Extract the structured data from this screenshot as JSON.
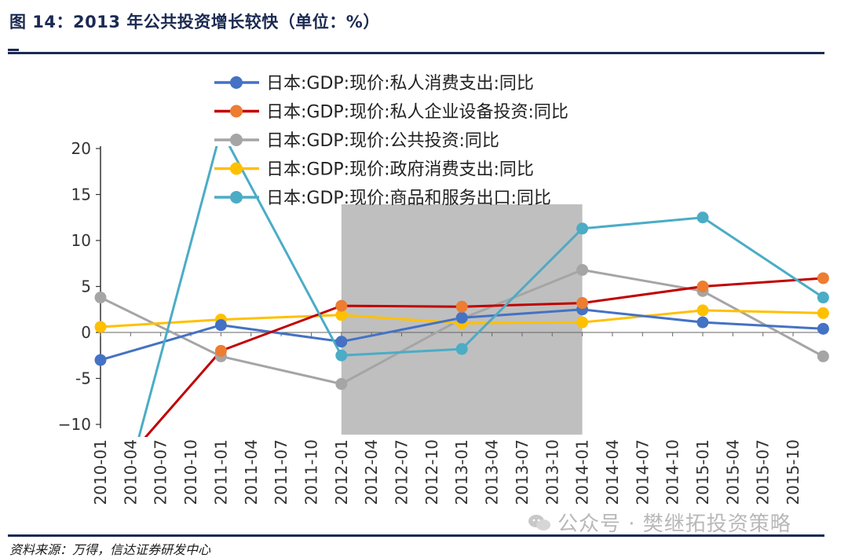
{
  "title": "图 14：2013 年公共投资增长较快（单位：%）",
  "source": "资料来源：万得，信达证券研发中心",
  "watermark": "公众号 · 樊继拓投资策略",
  "chart_data": {
    "type": "line",
    "x": [
      "2010-01",
      "2010-04",
      "2010-07",
      "2010-10",
      "2011-01",
      "2011-04",
      "2011-07",
      "2011-10",
      "2012-01",
      "2012-04",
      "2012-07",
      "2012-10",
      "2013-01",
      "2013-04",
      "2013-07",
      "2013-10",
      "2014-01",
      "2014-04",
      "2014-07",
      "2014-10",
      "2015-01",
      "2015-04",
      "2015-07",
      "2015-10"
    ],
    "ylim": [
      -10,
      20
    ],
    "yticks": [
      20,
      15,
      10,
      5,
      0,
      -5,
      -10
    ],
    "ytick_labels": [
      "20",
      "15",
      "10",
      "5",
      "0",
      "-5",
      "−10"
    ],
    "grid": false,
    "legend_position": "top",
    "shaded_region": {
      "from": "2012-01",
      "to": "2014-01",
      "color": "#bfbfbf"
    },
    "series": [
      {
        "name": "日本:GDP:现价:私人消费支出:同比",
        "color": "#4472c4",
        "points": [
          [
            "2010-01",
            -3.0
          ],
          [
            "2011-01",
            0.8
          ],
          [
            "2012-01",
            -1.0
          ],
          [
            "2013-01",
            1.6
          ],
          [
            "2014-01",
            2.5
          ],
          [
            "2015-01",
            1.1
          ],
          [
            "2016-01",
            0.4
          ]
        ]
      },
      {
        "name": "日本:GDP:现价:私人企业设备投资:同比",
        "color": "#c00000",
        "marker": "#ed7d31",
        "points": [
          [
            "2010-01",
            -17.0
          ],
          [
            "2011-01",
            -2.0
          ],
          [
            "2012-01",
            2.9
          ],
          [
            "2013-01",
            2.8
          ],
          [
            "2014-01",
            3.2
          ],
          [
            "2015-01",
            5.0
          ],
          [
            "2016-01",
            5.9
          ]
        ]
      },
      {
        "name": "日本:GDP:现价:公共投资:同比",
        "color": "#a5a5a5",
        "points": [
          [
            "2010-01",
            3.8
          ],
          [
            "2011-01",
            -2.6
          ],
          [
            "2012-01",
            -5.6
          ],
          [
            "2013-01",
            1.5
          ],
          [
            "2014-01",
            6.8
          ],
          [
            "2015-01",
            4.5
          ],
          [
            "2016-01",
            -2.6
          ]
        ]
      },
      {
        "name": "日本:GDP:现价:政府消费支出:同比",
        "color": "#ffc000",
        "points": [
          [
            "2010-01",
            0.6
          ],
          [
            "2011-01",
            1.4
          ],
          [
            "2012-01",
            1.9
          ],
          [
            "2013-01",
            1.0
          ],
          [
            "2014-01",
            1.1
          ],
          [
            "2015-01",
            2.4
          ],
          [
            "2016-01",
            2.1
          ]
        ]
      },
      {
        "name": "日本:GDP:现价:商品和服务出口:同比",
        "color": "#4bacc6",
        "points": [
          [
            "2010-01",
            -27.0
          ],
          [
            "2011-01",
            22.0
          ],
          [
            "2012-01",
            -2.5
          ],
          [
            "2013-01",
            -1.8
          ],
          [
            "2014-01",
            11.3
          ],
          [
            "2015-01",
            12.5
          ],
          [
            "2016-01",
            3.8
          ]
        ]
      }
    ]
  }
}
